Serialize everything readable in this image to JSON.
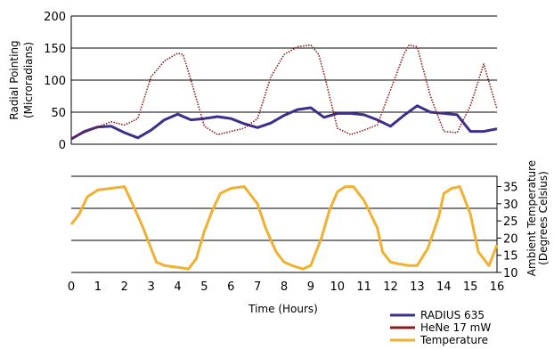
{
  "chart_data": [
    {
      "type": "line",
      "panel": "upper",
      "ylabel_line1": "Radial Pointing",
      "ylabel_line2": "(Microradians)",
      "ylim": [
        0,
        200
      ],
      "yticks": [
        0,
        50,
        100,
        150,
        200
      ],
      "grid": true,
      "series": [
        {
          "name": "RADIUS 635",
          "color": "#3d2e8c",
          "style": "solid",
          "x": [
            0,
            0.5,
            1,
            1.5,
            2,
            2.5,
            3,
            3.5,
            4,
            4.5,
            5,
            5.5,
            6,
            6.5,
            7,
            7.5,
            8,
            8.5,
            9,
            9.5,
            10,
            10.5,
            11,
            11.5,
            12,
            12.5,
            13,
            13.5,
            14,
            14.5,
            15,
            15.5,
            16
          ],
          "y": [
            8,
            20,
            27,
            28,
            18,
            10,
            22,
            38,
            47,
            38,
            40,
            43,
            40,
            32,
            26,
            33,
            45,
            54,
            57,
            42,
            48,
            48,
            46,
            38,
            28,
            45,
            60,
            50,
            48,
            46,
            20,
            20,
            24
          ]
        },
        {
          "name": "HeNe 17 mW",
          "color": "#8b1a1a",
          "style": "dotted",
          "x": [
            0,
            0.5,
            1,
            1.5,
            2,
            2.5,
            3,
            3.5,
            4,
            4.2,
            4.5,
            5,
            5.5,
            6,
            6.5,
            7,
            7.5,
            8,
            8.5,
            9,
            9.3,
            9.5,
            10,
            10.5,
            11,
            11.5,
            12,
            12.5,
            12.7,
            13,
            13.5,
            14,
            14.5,
            15,
            15.5,
            16
          ],
          "y": [
            10,
            18,
            27,
            35,
            30,
            40,
            105,
            130,
            142,
            140,
            100,
            28,
            15,
            20,
            25,
            40,
            105,
            140,
            152,
            155,
            140,
            110,
            25,
            15,
            22,
            30,
            85,
            140,
            155,
            152,
            75,
            20,
            18,
            60,
            125,
            55
          ]
        }
      ]
    },
    {
      "type": "line",
      "panel": "lower",
      "xlabel": "Time (Hours)",
      "xlim": [
        0,
        16
      ],
      "xticks": [
        0,
        1,
        2,
        3,
        4,
        5,
        6,
        7,
        8,
        9,
        10,
        11,
        12,
        13,
        14,
        15,
        16
      ],
      "ylabel_line1": "Ambient Temperature",
      "ylabel_line2": "(Degrees Celsius)",
      "yaxis_side": "right",
      "ylim": [
        10,
        38
      ],
      "yticks": [
        10,
        15,
        20,
        25,
        30,
        35
      ],
      "grid": true,
      "series": [
        {
          "name": "Temperature",
          "color": "#f0b030",
          "style": "solid",
          "x": [
            0,
            0.3,
            0.6,
            1,
            1.5,
            2,
            2.3,
            2.7,
            3,
            3.2,
            3.5,
            4,
            4.4,
            4.7,
            5,
            5.3,
            5.6,
            6,
            6.5,
            7,
            7.3,
            7.7,
            8,
            8.3,
            8.7,
            9,
            9.4,
            9.7,
            10,
            10.3,
            10.6,
            11,
            11.5,
            11.7,
            12,
            12.3,
            12.7,
            13,
            13.4,
            13.8,
            14,
            14.3,
            14.6,
            15,
            15.3,
            15.7,
            16
          ],
          "y": [
            24,
            27,
            32,
            34,
            34.5,
            35,
            30,
            23,
            17,
            13,
            12,
            11.5,
            11,
            14,
            22,
            28,
            33,
            34.5,
            35,
            30,
            23,
            16,
            13,
            12,
            11,
            12,
            20,
            28,
            33.5,
            35,
            35,
            31,
            23,
            16,
            13,
            12.5,
            12,
            12,
            17,
            26,
            33,
            34.5,
            35,
            27,
            16,
            12,
            18
          ]
        }
      ]
    }
  ],
  "legend": {
    "placement": "bottom-right",
    "items": [
      {
        "label": "RADIUS 635",
        "color": "#3d2e8c"
      },
      {
        "label": "HeNe 17 mW",
        "color": "#8b1a1a"
      },
      {
        "label": "Temperature",
        "color": "#f0b030"
      }
    ]
  }
}
